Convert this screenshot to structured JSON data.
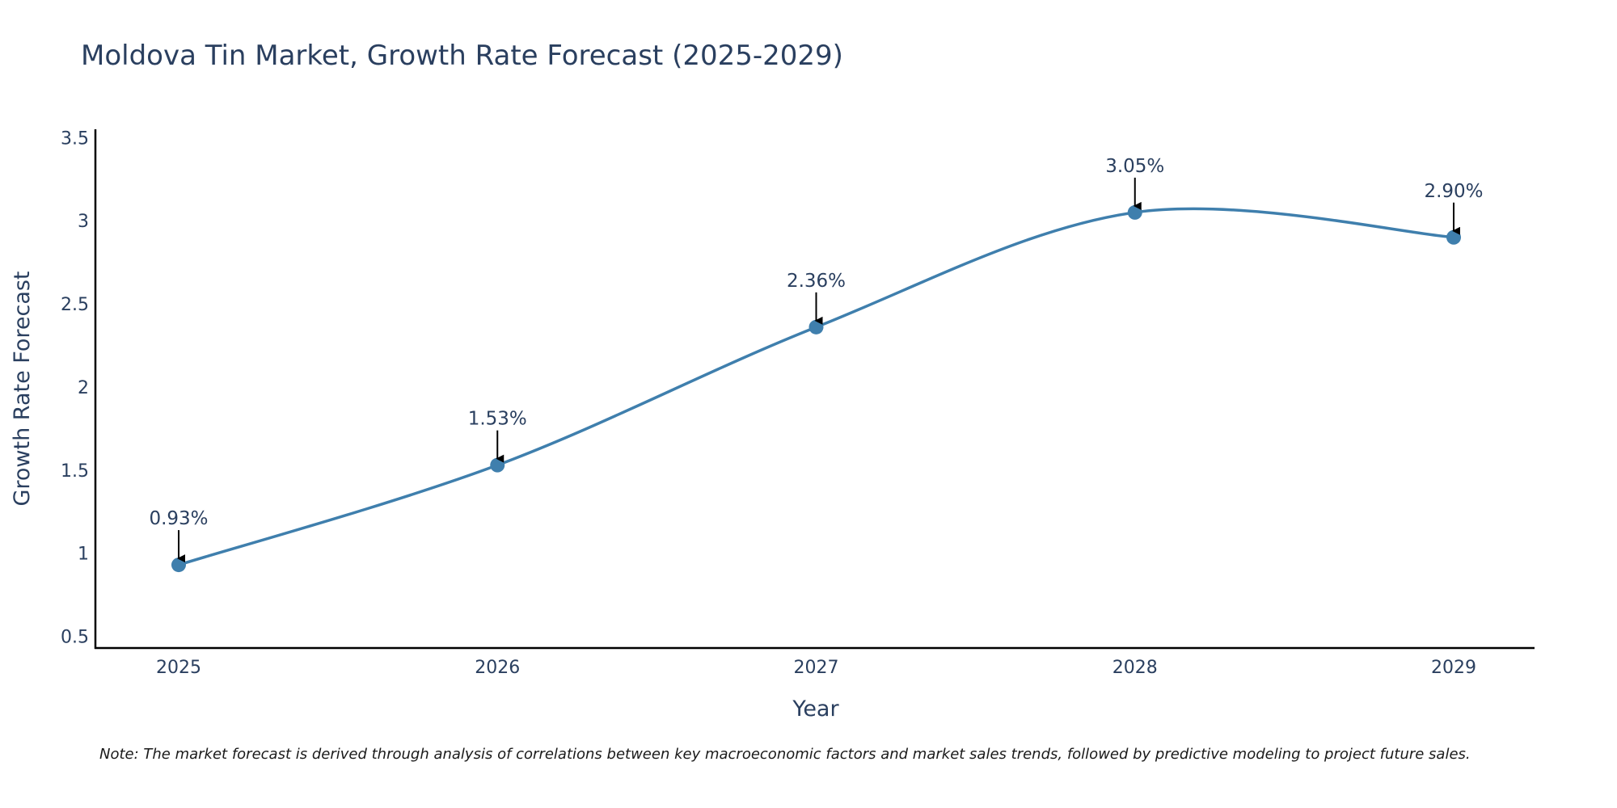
{
  "colors": {
    "line": "#3f7fad",
    "marker": "#3f7fad",
    "axis": "#000000",
    "text": "#2a3f5f",
    "arrow": "#000000"
  },
  "chart_data": {
    "type": "line",
    "title": "Moldova Tin Market, Growth Rate Forecast (2025-2029)",
    "xlabel": "Year",
    "ylabel": "Growth Rate Forecast",
    "categories": [
      "2025",
      "2026",
      "2027",
      "2028",
      "2029"
    ],
    "series": [
      {
        "name": "Growth Rate Forecast",
        "values": [
          0.93,
          1.53,
          2.36,
          3.05,
          2.9
        ]
      }
    ],
    "data_labels": [
      "0.93%",
      "1.53%",
      "2.36%",
      "3.05%",
      "2.90%"
    ],
    "yticks": [
      0.5,
      1,
      1.5,
      2,
      2.5,
      3,
      3.5
    ],
    "ytick_labels": [
      "0.5",
      "1",
      "1.5",
      "2",
      "2.5",
      "3",
      "3.5"
    ],
    "ylim": [
      0.43,
      3.55
    ],
    "grid": false,
    "line_shape": "spline",
    "note": "Note: The market forecast is derived through analysis of correlations between key macroeconomic factors and market sales trends, followed by predictive modeling to project future sales."
  }
}
